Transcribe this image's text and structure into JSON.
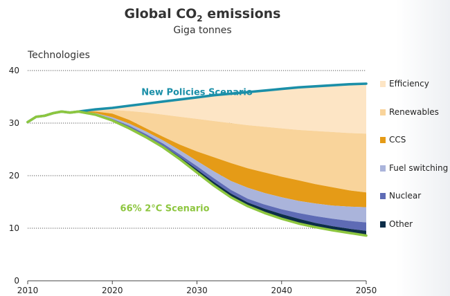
{
  "chart_data": {
    "type": "area",
    "title": "Global CO",
    "title_subscript": "2",
    "title_suffix": " emissions",
    "subtitle": "Giga tonnes",
    "ylabel": "Technologies",
    "xlabel": "",
    "xlim": [
      2010,
      2050
    ],
    "ylim": [
      0,
      40
    ],
    "x_ticks": [
      2010,
      2020,
      2030,
      2040,
      2050
    ],
    "y_ticks": [
      0,
      10,
      20,
      30,
      40
    ],
    "grid": "dotted horizontal",
    "x": [
      2010,
      2011,
      2012,
      2013,
      2014,
      2015,
      2016,
      2018,
      2020,
      2022,
      2024,
      2026,
      2028,
      2030,
      2032,
      2034,
      2036,
      2038,
      2040,
      2042,
      2044,
      2046,
      2048,
      2050
    ],
    "annotations": [
      {
        "text": "New Policies Scenario",
        "color": "#1b8fa8",
        "x": 2030,
        "y": 35.3
      },
      {
        "text": "66% 2°C Scenario",
        "color": "#8dc63f",
        "x": 2026.2,
        "y": 13.2
      }
    ],
    "lines": [
      {
        "name": "New Policies Scenario",
        "color": "#1b8fa8",
        "values": [
          30.2,
          31.2,
          31.4,
          31.9,
          32.2,
          32.0,
          32.2,
          32.6,
          32.9,
          33.3,
          33.7,
          34.1,
          34.5,
          34.9,
          35.3,
          35.6,
          35.9,
          36.2,
          36.5,
          36.8,
          37.0,
          37.2,
          37.4,
          37.5
        ]
      },
      {
        "name": "66% 2°C Scenario",
        "color": "#8dc63f",
        "values": [
          30.2,
          31.2,
          31.4,
          31.9,
          32.2,
          32.0,
          32.2,
          31.6,
          30.5,
          29.0,
          27.3,
          25.4,
          23.1,
          20.6,
          18.1,
          15.9,
          14.2,
          12.9,
          11.8,
          10.9,
          10.2,
          9.6,
          9.1,
          8.6
        ]
      }
    ],
    "bands": [
      {
        "name": "Efficiency",
        "color": "#fde5c5",
        "upper": "New Policies Scenario",
        "lower_values": [
          30.2,
          31.2,
          31.4,
          31.9,
          32.2,
          32.0,
          32.2,
          32.4,
          32.5,
          32.3,
          32.0,
          31.6,
          31.2,
          30.8,
          30.4,
          30.0,
          29.6,
          29.3,
          29.0,
          28.7,
          28.5,
          28.3,
          28.1,
          28.0
        ]
      },
      {
        "name": "Renewables",
        "color": "#f9d49b",
        "upper": "Efficiency",
        "lower_values": [
          30.2,
          31.2,
          31.4,
          31.9,
          32.2,
          32.0,
          32.2,
          32.2,
          31.8,
          30.6,
          29.0,
          27.4,
          25.9,
          24.6,
          23.5,
          22.4,
          21.4,
          20.6,
          19.8,
          19.1,
          18.4,
          17.8,
          17.2,
          16.8
        ]
      },
      {
        "name": "CCS",
        "color": "#e59b17",
        "upper": "Renewables",
        "lower_values": [
          30.2,
          31.2,
          31.4,
          31.9,
          32.2,
          32.0,
          32.2,
          31.9,
          31.1,
          29.9,
          28.4,
          26.7,
          24.8,
          22.8,
          20.8,
          19.0,
          17.7,
          16.7,
          15.9,
          15.2,
          14.7,
          14.3,
          14.1,
          14.0
        ]
      },
      {
        "name": "Fuel switching",
        "color": "#aab4db",
        "upper": "CCS",
        "lower_values": [
          30.2,
          31.2,
          31.4,
          31.9,
          32.2,
          32.0,
          32.2,
          31.8,
          30.8,
          29.5,
          27.9,
          26.1,
          24.0,
          21.8,
          19.5,
          17.3,
          15.6,
          14.5,
          13.6,
          12.9,
          12.3,
          11.8,
          11.4,
          11.1
        ]
      },
      {
        "name": "Nuclear",
        "color": "#5e6bb5",
        "upper": "Fuel switching",
        "lower_values": [
          30.2,
          31.2,
          31.4,
          31.9,
          32.2,
          32.0,
          32.2,
          31.7,
          30.6,
          29.2,
          27.5,
          25.7,
          23.5,
          21.2,
          18.8,
          16.6,
          14.9,
          13.7,
          12.7,
          11.8,
          11.0,
          10.4,
          9.9,
          9.5
        ]
      },
      {
        "name": "Other",
        "color": "#0c2d48",
        "upper": "Nuclear",
        "lower": "66% 2°C Scenario"
      }
    ],
    "legend": {
      "position": "right",
      "entries": [
        "Efficiency",
        "Renewables",
        "CCS",
        "Fuel switching",
        "Nuclear",
        "Other"
      ]
    }
  }
}
